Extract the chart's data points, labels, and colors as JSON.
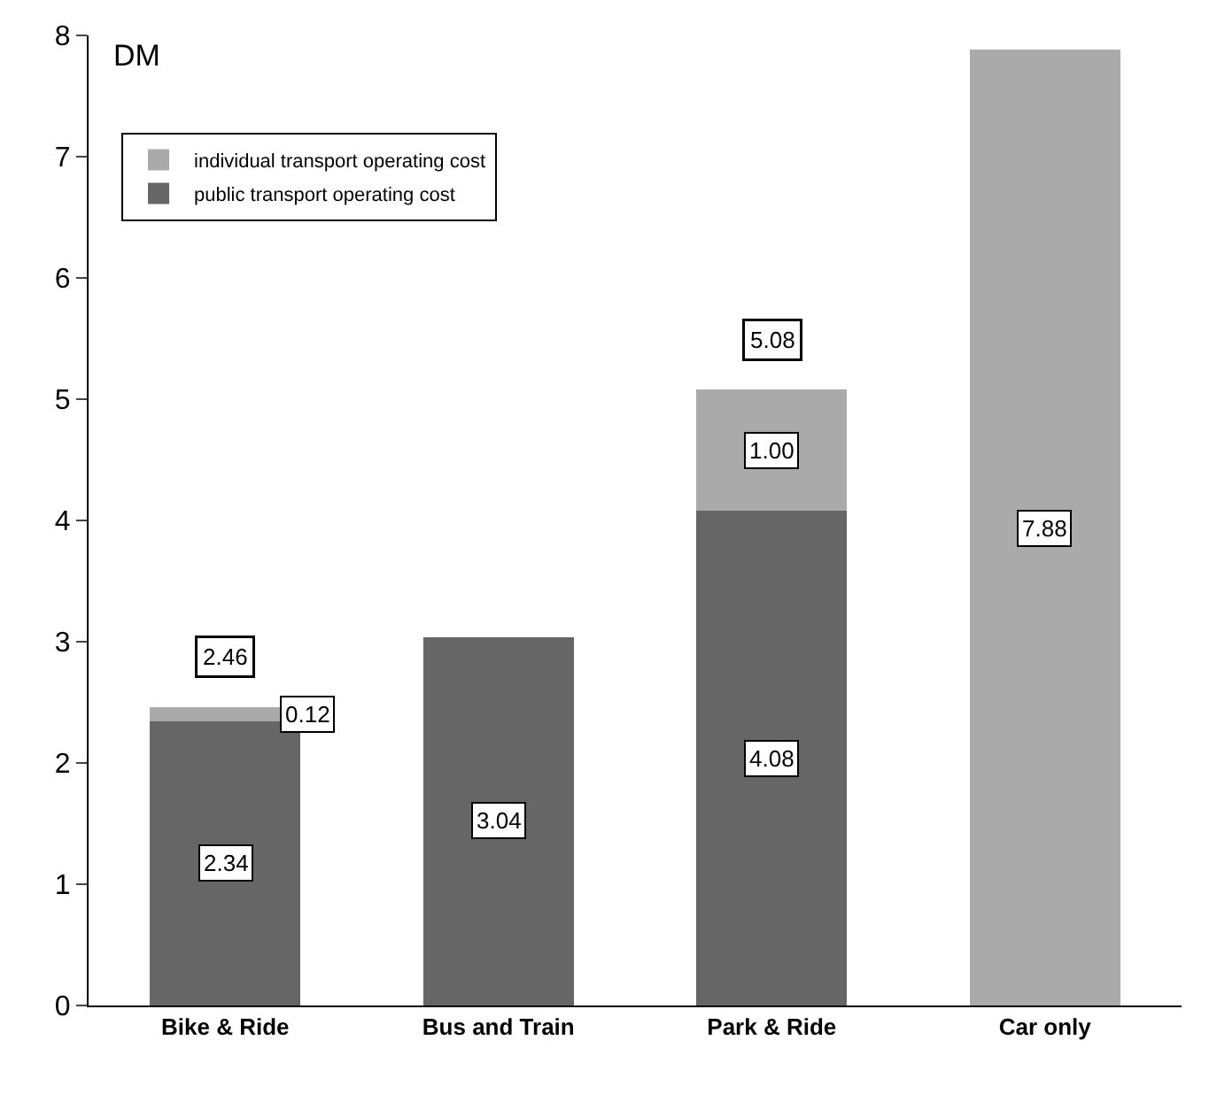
{
  "chart_data": {
    "type": "bar",
    "stacked": true,
    "ylabel": "DM",
    "categories": [
      "Bike & Ride",
      "Bus and Train",
      "Park & Ride",
      "Car only"
    ],
    "series": [
      {
        "name": "public transport operating cost",
        "color": "#666666",
        "values": [
          2.34,
          3.04,
          4.08,
          null
        ],
        "value_labels": [
          "2.34",
          "3.04",
          "4.08",
          null
        ]
      },
      {
        "name": "individual transport operating cost",
        "color": "#aaaaaa",
        "values": [
          0.12,
          null,
          1.0,
          7.88
        ],
        "value_labels": [
          "0.12",
          null,
          "1.00",
          "7.88"
        ]
      }
    ],
    "totals": [
      "2.46",
      null,
      "5.08",
      null
    ],
    "ylim": [
      0,
      8
    ],
    "yticks": [
      0,
      1,
      2,
      3,
      4,
      5,
      6,
      7,
      8
    ],
    "grid": false,
    "legend": "top left"
  }
}
